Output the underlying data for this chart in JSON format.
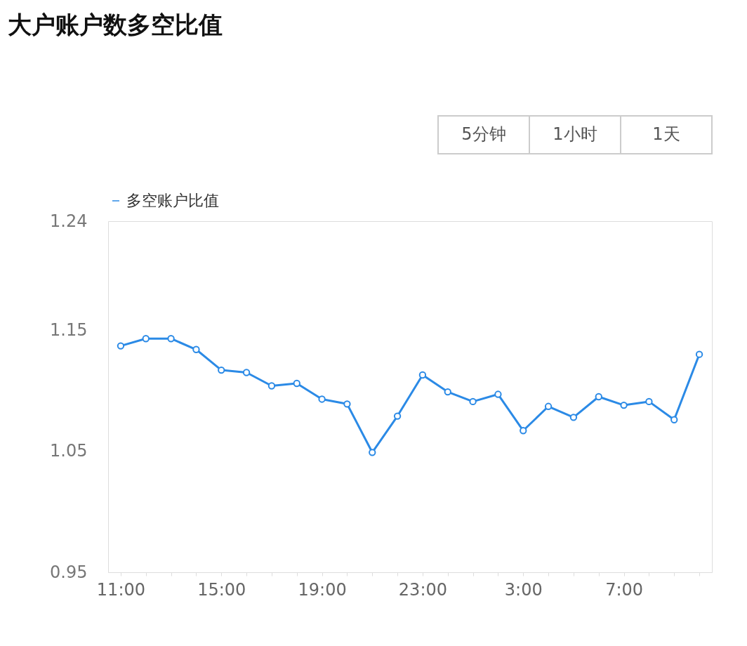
{
  "chart_data": {
    "type": "line",
    "title": "大户账户数多空比值",
    "annotations": [
      "5分钟",
      "1小时",
      "1天"
    ],
    "categories": [
      "11:00",
      null,
      null,
      null,
      "15:00",
      null,
      null,
      null,
      "19:00",
      null,
      null,
      null,
      "23:00",
      null,
      null,
      null,
      "3:00",
      null,
      null,
      null,
      "7:00",
      null,
      null,
      null
    ],
    "series": [
      {
        "name": "多空账户比值",
        "color": "#2b8ae6",
        "values": [
          1.137,
          1.143,
          1.143,
          1.134,
          1.117,
          1.115,
          1.104,
          1.106,
          1.093,
          1.089,
          1.049,
          1.079,
          1.113,
          1.099,
          1.091,
          1.097,
          1.067,
          1.087,
          1.078,
          1.095,
          1.088,
          1.091,
          1.076,
          1.13
        ]
      }
    ],
    "ylim": [
      0.95,
      1.24
    ],
    "yticks": [
      0.95,
      1.05,
      1.15,
      1.24
    ],
    "grid": false,
    "legend": "top",
    "marker": "circle",
    "line_style": "solid"
  }
}
